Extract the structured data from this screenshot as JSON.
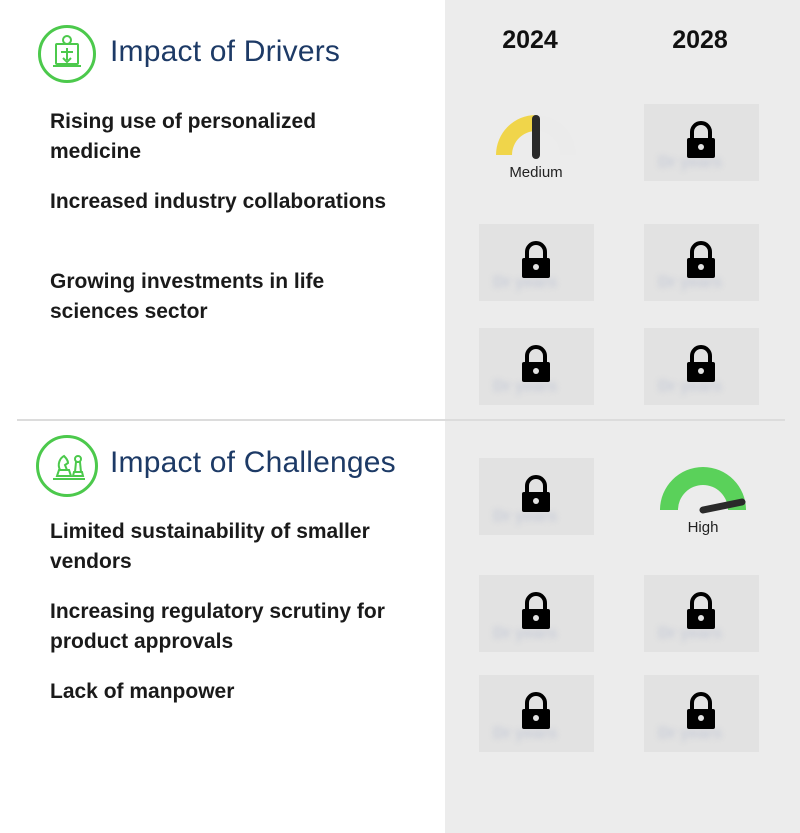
{
  "years": [
    "2024",
    "2028"
  ],
  "drivers": {
    "title": "Impact of Drivers",
    "icon": "gear-box-icon",
    "items": [
      {
        "label": "Rising use of personalized medicine"
      },
      {
        "label": "Increased industry collaborations"
      },
      {
        "label": "Growing investments in life sciences sector"
      }
    ]
  },
  "challenges": {
    "title": "Impact of Challenges",
    "icon": "chess-pieces-icon",
    "items": [
      {
        "label": "Limited sustainability of smaller vendors"
      },
      {
        "label": "Increasing regulatory scrutiny for product approvals"
      },
      {
        "label": "Lack of manpower"
      }
    ]
  },
  "gauges": {
    "medium": {
      "label": "Medium",
      "level": 0.5,
      "color": "#f0d54a"
    },
    "high": {
      "label": "High",
      "level": 0.95,
      "color": "#5ad15a"
    }
  },
  "locked_text": "Dr years",
  "colors": {
    "accent_green": "#4cc94c",
    "title_blue": "#1d3a66",
    "panel_gray": "#ececec"
  }
}
